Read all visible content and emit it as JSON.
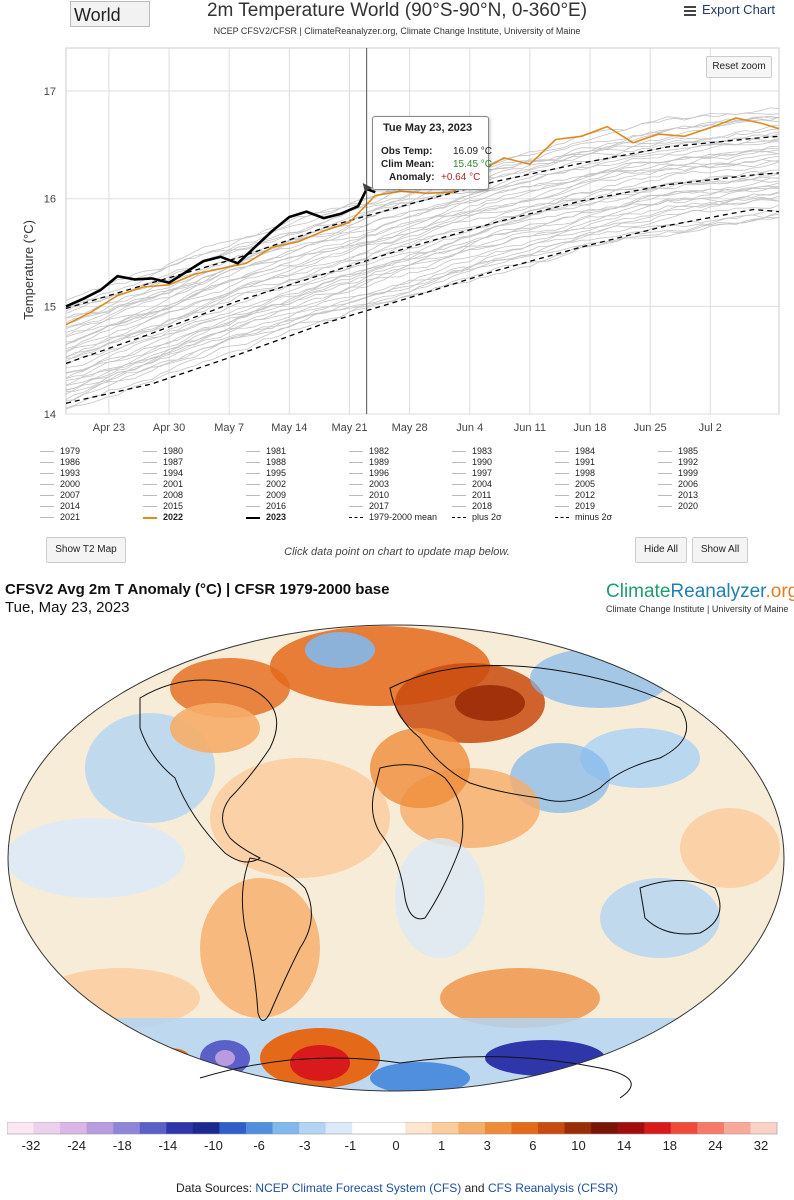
{
  "header": {
    "region_selector": "World",
    "title": "2m Temperature World (90°S-90°N, 0-360°E)",
    "subtitle": "NCEP CFSV2/CFSR | ClimateReanalyzer.org, Climate Change Institute, University of Maine",
    "export_label": "Export Chart",
    "reset_zoom_label": "Reset zoom"
  },
  "tooltip": {
    "date": "Tue May 23, 2023",
    "obs_label": "Obs Temp:",
    "obs_value": "16.09 °C",
    "clim_label": "Clim Mean:",
    "clim_value": "15.45 °C",
    "anom_label": "Anomaly:",
    "anom_value": "+0.64 °C"
  },
  "chart_data": {
    "type": "line",
    "ylabel": "Temperature (°C)",
    "ylim": [
      14,
      17.4
    ],
    "yticks": [
      "14",
      "15",
      "16",
      "17"
    ],
    "xticks": [
      {
        "label": "Apr 23",
        "day": 22
      },
      {
        "label": "Apr 30",
        "day": 29
      },
      {
        "label": "May 7",
        "day": 36
      },
      {
        "label": "May 14",
        "day": 43
      },
      {
        "label": "May 21",
        "day": 50
      },
      {
        "label": "May 28",
        "day": 57
      },
      {
        "label": "Jun 4",
        "day": 64
      },
      {
        "label": "Jun 11",
        "day": 71
      },
      {
        "label": "Jun 18",
        "day": 78
      },
      {
        "label": "Jun 25",
        "day": 85
      },
      {
        "label": "Jul 2",
        "day": 92
      }
    ],
    "x_days_range": [
      17,
      100
    ],
    "x_axis_note": "day numbers are days after Apr 1 (Apr 23 = 22)",
    "grid": true,
    "crosshair_day": 52,
    "series": [
      {
        "name": "2023",
        "color": "#000000",
        "width": 2.6,
        "days": [
          17,
          19,
          21,
          23,
          25,
          27,
          29,
          31,
          33,
          35,
          37,
          39,
          41,
          43,
          45,
          47,
          49,
          51,
          52,
          53
        ],
        "values": [
          15.0,
          15.07,
          15.15,
          15.28,
          15.25,
          15.26,
          15.22,
          15.32,
          15.42,
          15.46,
          15.4,
          15.55,
          15.7,
          15.83,
          15.88,
          15.82,
          15.86,
          15.93,
          16.09,
          16.06
        ]
      },
      {
        "name": "2022",
        "color": "#e08a1e",
        "width": 1.6,
        "days": [
          17,
          20,
          23,
          26,
          29,
          32,
          35,
          38,
          41,
          44,
          47,
          50,
          53,
          56,
          59,
          62,
          65,
          68,
          71,
          74,
          77,
          80,
          83,
          86,
          89,
          92,
          95,
          98,
          100
        ],
        "values": [
          14.83,
          14.95,
          15.1,
          15.18,
          15.2,
          15.3,
          15.35,
          15.4,
          15.55,
          15.6,
          15.7,
          15.78,
          16.03,
          16.07,
          16.05,
          16.06,
          16.25,
          16.38,
          16.32,
          16.55,
          16.58,
          16.67,
          16.52,
          16.6,
          16.58,
          16.66,
          16.75,
          16.7,
          16.65
        ]
      },
      {
        "name": "1979-2000 mean",
        "color": "#000000",
        "width": 1.3,
        "dash": "5,4",
        "days": [
          17,
          27,
          37,
          47,
          57,
          67,
          77,
          87,
          97,
          100
        ],
        "values": [
          14.47,
          14.75,
          15.05,
          15.3,
          15.55,
          15.78,
          15.98,
          16.13,
          16.22,
          16.24
        ]
      },
      {
        "name": "plus 2σ",
        "color": "#000000",
        "width": 1.3,
        "dash": "5,4",
        "days": [
          17,
          27,
          37,
          47,
          57,
          67,
          77,
          87,
          97,
          100
        ],
        "values": [
          14.98,
          15.22,
          15.45,
          15.73,
          15.95,
          16.16,
          16.33,
          16.48,
          16.56,
          16.58
        ]
      },
      {
        "name": "minus 2σ",
        "color": "#000000",
        "width": 1.3,
        "dash": "5,4",
        "days": [
          17,
          27,
          37,
          47,
          57,
          67,
          77,
          87,
          97,
          100
        ],
        "values": [
          14.1,
          14.28,
          14.55,
          14.84,
          15.08,
          15.33,
          15.55,
          15.75,
          15.9,
          15.88
        ]
      }
    ],
    "background_years_note": "individual years 1979-2021 drawn in light grey"
  },
  "legend": {
    "items": [
      "1979",
      "1980",
      "1981",
      "1982",
      "1983",
      "1984",
      "1985",
      "1986",
      "1987",
      "1988",
      "1989",
      "1990",
      "1991",
      "1992",
      "1993",
      "1994",
      "1995",
      "1996",
      "1997",
      "1998",
      "1999",
      "2000",
      "2001",
      "2002",
      "2003",
      "2004",
      "2005",
      "2006",
      "2007",
      "2008",
      "2009",
      "2010",
      "2011",
      "2012",
      "2013",
      "2014",
      "2015",
      "2016",
      "2017",
      "2018",
      "2019",
      "2020",
      "2021",
      "2022",
      "2023",
      "1979-2000 mean",
      "plus 2σ",
      "minus 2σ"
    ],
    "highlight": {
      "2022": "#e08a1e",
      "2023": "#000000"
    }
  },
  "controls": {
    "show_map": "Show T2 Map",
    "hint": "Click data point on chart to update map below.",
    "hide_all": "Hide All",
    "show_all": "Show All"
  },
  "map": {
    "title": "CFSV2 Avg 2m T Anomaly (°C) | CFSR 1979-2000 base",
    "date": "Tue, May 23, 2023",
    "logo_climate": "Climate",
    "logo_reanalyzer": "Reanalyzer",
    "logo_org": ".org",
    "logo_subtitle": "Climate Change Institute | University of Maine"
  },
  "colorbar": {
    "labels": [
      "-32",
      "-24",
      "-18",
      "-14",
      "-10",
      "-6",
      "-3",
      "-1",
      "0",
      "1",
      "3",
      "6",
      "10",
      "14",
      "18",
      "24",
      "32"
    ],
    "colors": [
      "#fbe6f2",
      "#ecd0ee",
      "#d9b5e8",
      "#b99ce0",
      "#8f85d8",
      "#5b5fc8",
      "#2e36aa",
      "#1c2a90",
      "#2f5fc8",
      "#4f8fde",
      "#82b8ec",
      "#b3d5f3",
      "#dbeaf8",
      "#ffffff",
      "#ffffff",
      "#fde6cf",
      "#fbcc9c",
      "#f6ad68",
      "#ef8c3a",
      "#e46a1a",
      "#c94a0e",
      "#9a2c08",
      "#7a1405",
      "#a10c0c",
      "#d81a1a",
      "#ef4a3a",
      "#f67a6a",
      "#f9a99a",
      "#fbd2c8"
    ]
  },
  "sources": {
    "prefix": "Data Sources: ",
    "link1": "NCEP Climate Forecast System (CFS)",
    "middle": " and ",
    "link2": "CFS Reanalysis (CFSR)"
  }
}
